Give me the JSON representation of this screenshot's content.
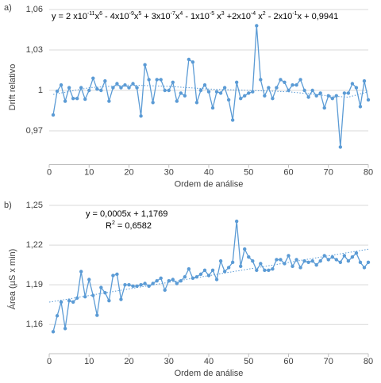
{
  "chart_data": [
    {
      "type": "line",
      "panel_label": "a)",
      "ylabel": "Drift relativo",
      "xlabel": "Ordem de análise",
      "equation": [
        [
          "y = 2 x10",
          "-11",
          "x",
          "6",
          " - 4x10",
          "-9",
          "x",
          "5",
          " + 3x10",
          "-7",
          "x",
          "4",
          " - 1x10",
          "-5",
          " x",
          "3",
          " +2x10",
          "-4",
          " x",
          "2",
          " - 2x10",
          "-1",
          "x + 0,9941"
        ]
      ],
      "xlim": [
        0,
        80
      ],
      "xticks": [
        0,
        10,
        20,
        30,
        40,
        50,
        60,
        70,
        80
      ],
      "ylim": [
        0.945,
        1.06
      ],
      "yticks": [
        {
          "value": 1.06,
          "label": "1,06"
        },
        {
          "value": 1.03,
          "label": "1,03"
        },
        1,
        {
          "value": 0.97,
          "label": "0,97"
        }
      ],
      "grid": true,
      "x": [
        1,
        2,
        3,
        4,
        5,
        6,
        7,
        8,
        9,
        10,
        11,
        12,
        13,
        14,
        15,
        16,
        17,
        18,
        19,
        20,
        21,
        22,
        23,
        24,
        25,
        26,
        27,
        28,
        29,
        30,
        31,
        32,
        33,
        34,
        35,
        36,
        37,
        38,
        39,
        40,
        41,
        42,
        43,
        44,
        45,
        46,
        47,
        48,
        49,
        50,
        51,
        52,
        53,
        54,
        55,
        56,
        57,
        58,
        59,
        60,
        61,
        62,
        63,
        64,
        65,
        66,
        67,
        68,
        69,
        70,
        71,
        72,
        73,
        74,
        75,
        76,
        77,
        78,
        79,
        80
      ],
      "series": [
        {
          "color": "#5b9bd5",
          "values": [
            0.9818,
            0.9994,
            1.004,
            0.992,
            1.002,
            0.994,
            0.994,
            1.002,
            0.9935,
            1.0,
            1.009,
            1.001,
            1.0,
            1.007,
            0.992,
            1.002,
            1.005,
            1.002,
            1.004,
            1.002,
            1.005,
            1.002,
            0.981,
            1.019,
            1.008,
            0.991,
            1.008,
            1.008,
            1.0,
            1.0,
            1.006,
            0.992,
            0.998,
            0.996,
            1.023,
            1.021,
            0.991,
            1.0,
            1.004,
            0.999,
            0.987,
            0.999,
            0.998,
            1.002,
            0.993,
            0.978,
            1.006,
            0.994,
            0.996,
            0.998,
            0.999,
            1.048,
            1.008,
            0.996,
            1.002,
            0.994,
            1.002,
            1.008,
            1.006,
            1.0,
            1.004,
            1.004,
            1.008,
            1.0,
            0.995,
            1.0,
            0.996,
            0.998,
            0.987,
            0.996,
            0.994,
            0.996,
            0.958,
            0.998,
            0.998,
            1.005,
            1.002,
            0.988,
            1.007,
            0.993
          ]
        }
      ],
      "trendline": {
        "x": [
          1,
          10,
          20,
          30,
          40,
          50,
          60,
          70,
          75,
          80
        ],
        "values": [
          0.997,
          1.002,
          1.004,
          1.003,
          1.001,
          1.0,
          0.999,
          0.996,
          0.995,
          0.999
        ]
      }
    },
    {
      "type": "line",
      "panel_label": "b)",
      "ylabel": "Área (µS x min)",
      "xlabel": "Ordem de análise",
      "equation": [
        [
          "y = 0,0005x + 1,1769"
        ],
        [
          "R",
          "2",
          " = 0,6582"
        ]
      ],
      "xlim": [
        0,
        80
      ],
      "xticks": [
        0,
        10,
        20,
        30,
        40,
        50,
        60,
        70,
        80
      ],
      "ylim": [
        1.138,
        1.25
      ],
      "yticks": [
        {
          "value": 1.25,
          "label": "1,25"
        },
        {
          "value": 1.22,
          "label": "1,22"
        },
        {
          "value": 1.19,
          "label": "1,19"
        },
        {
          "value": 1.16,
          "label": "1,16"
        }
      ],
      "grid": true,
      "x": [
        1,
        2,
        3,
        4,
        5,
        6,
        7,
        8,
        9,
        10,
        11,
        12,
        13,
        14,
        15,
        16,
        17,
        18,
        19,
        20,
        21,
        22,
        23,
        24,
        25,
        26,
        27,
        28,
        29,
        30,
        31,
        32,
        33,
        34,
        35,
        36,
        37,
        38,
        39,
        40,
        41,
        42,
        43,
        44,
        45,
        46,
        47,
        48,
        49,
        50,
        51,
        52,
        53,
        54,
        55,
        56,
        57,
        58,
        59,
        60,
        61,
        62,
        63,
        64,
        65,
        66,
        67,
        68,
        69,
        70,
        71,
        72,
        73,
        74,
        75,
        76,
        77,
        78,
        79,
        80
      ],
      "series": [
        {
          "color": "#5b9bd5",
          "values": [
            1.1546,
            1.1666,
            1.177,
            1.157,
            1.178,
            1.177,
            1.18,
            1.2,
            1.181,
            1.194,
            1.182,
            1.167,
            1.188,
            1.184,
            1.178,
            1.197,
            1.198,
            1.179,
            1.19,
            1.19,
            1.189,
            1.189,
            1.19,
            1.191,
            1.189,
            1.191,
            1.193,
            1.195,
            1.186,
            1.193,
            1.194,
            1.191,
            1.193,
            1.196,
            1.202,
            1.195,
            1.196,
            1.198,
            1.201,
            1.197,
            1.201,
            1.194,
            1.208,
            1.2,
            1.203,
            1.207,
            1.238,
            1.204,
            1.217,
            1.211,
            1.208,
            1.201,
            1.206,
            1.201,
            1.201,
            1.202,
            1.209,
            1.209,
            1.206,
            1.212,
            1.204,
            1.209,
            1.203,
            1.208,
            1.207,
            1.208,
            1.205,
            1.208,
            1.212,
            1.209,
            1.211,
            1.209,
            1.207,
            1.212,
            1.208,
            1.211,
            1.214,
            1.207,
            1.203,
            1.207
          ]
        }
      ],
      "trendline": {
        "x": [
          0,
          80
        ],
        "values": [
          1.1769,
          1.2169
        ]
      }
    }
  ]
}
